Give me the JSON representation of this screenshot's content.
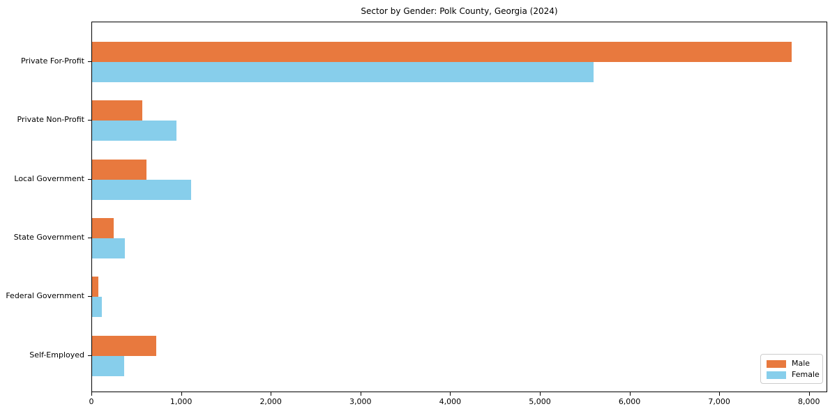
{
  "chart_data": {
    "type": "bar",
    "orientation": "horizontal",
    "title": "Sector by Gender: Polk County, Georgia (2024)",
    "categories": [
      "Private For-Profit",
      "Private Non-Profit",
      "Local Government",
      "State Government",
      "Federal Government",
      "Self-Employed"
    ],
    "series": [
      {
        "name": "Male",
        "color": "#e8793e",
        "values": [
          7810,
          570,
          615,
          245,
          78,
          720
        ]
      },
      {
        "name": "Female",
        "color": "#87ceeb",
        "values": [
          5600,
          950,
          1110,
          370,
          120,
          368
        ]
      }
    ],
    "xlabel": "",
    "ylabel": "",
    "xlim": [
      0,
      8204
    ],
    "xticks": [
      0,
      1000,
      2000,
      3000,
      4000,
      5000,
      6000,
      7000,
      8000
    ],
    "xtick_labels": [
      "0",
      "1,000",
      "2,000",
      "3,000",
      "4,000",
      "5,000",
      "6,000",
      "7,000",
      "8,000"
    ],
    "grid": false,
    "legend": {
      "position": "lower right",
      "entries": [
        "Male",
        "Female"
      ]
    },
    "frame_color": "#000000",
    "background_color": "#ffffff"
  }
}
